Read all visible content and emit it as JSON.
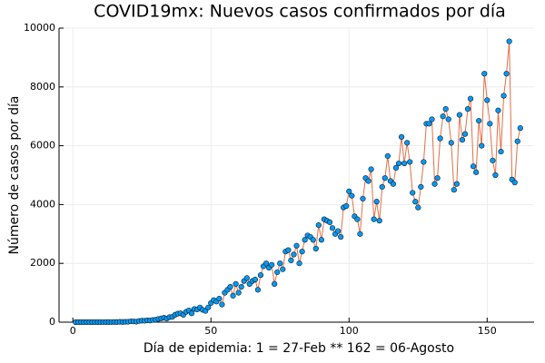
{
  "chart_data": {
    "type": "line",
    "title": "COVID19mx: Nuevos casos confirmados por día",
    "x_label": "Día de epidemia: 1 = 27-Feb ** 162 = 06-Agosto",
    "y_label": "Número de casos por día",
    "x": [
      1,
      2,
      3,
      4,
      5,
      6,
      7,
      8,
      9,
      10,
      11,
      12,
      13,
      14,
      15,
      16,
      17,
      18,
      19,
      20,
      21,
      22,
      23,
      24,
      25,
      26,
      27,
      28,
      29,
      30,
      31,
      32,
      33,
      34,
      35,
      36,
      37,
      38,
      39,
      40,
      41,
      42,
      43,
      44,
      45,
      46,
      47,
      48,
      49,
      50,
      51,
      52,
      53,
      54,
      55,
      56,
      57,
      58,
      59,
      60,
      61,
      62,
      63,
      64,
      65,
      66,
      67,
      68,
      69,
      70,
      71,
      72,
      73,
      74,
      75,
      76,
      77,
      78,
      79,
      80,
      81,
      82,
      83,
      84,
      85,
      86,
      87,
      88,
      89,
      90,
      91,
      92,
      93,
      94,
      95,
      96,
      97,
      98,
      99,
      100,
      101,
      102,
      103,
      104,
      105,
      106,
      107,
      108,
      109,
      110,
      111,
      112,
      113,
      114,
      115,
      116,
      117,
      118,
      119,
      120,
      121,
      122,
      123,
      124,
      125,
      126,
      127,
      128,
      129,
      130,
      131,
      132,
      133,
      134,
      135,
      136,
      137,
      138,
      139,
      140,
      141,
      142,
      143,
      144,
      145,
      146,
      147,
      148,
      149,
      150,
      151,
      152,
      153,
      154,
      155,
      156,
      157,
      158,
      159,
      160,
      161,
      162
    ],
    "series": [
      {
        "color": "#e26f46",
        "marker_color": "#009af9",
        "values": [
          0,
          0,
          0,
          1,
          0,
          1,
          0,
          1,
          0,
          1,
          2,
          1,
          3,
          2,
          5,
          4,
          12,
          7,
          12,
          14,
          29,
          25,
          16,
          40,
          51,
          48,
          62,
          55,
          75,
          80,
          110,
          130,
          150,
          120,
          170,
          180,
          250,
          290,
          300,
          250,
          350,
          400,
          300,
          450,
          430,
          500,
          420,
          380,
          500,
          650,
          750,
          700,
          800,
          600,
          1000,
          1100,
          1200,
          900,
          1300,
          1000,
          1200,
          1400,
          1500,
          1300,
          1400,
          1450,
          1100,
          1600,
          1900,
          2000,
          1850,
          1950,
          1300,
          1700,
          2000,
          1800,
          2400,
          2450,
          2100,
          2300,
          2600,
          2000,
          2400,
          2800,
          2950,
          2900,
          2800,
          2500,
          3300,
          2800,
          3500,
          3450,
          3400,
          3200,
          3000,
          3100,
          2900,
          3900,
          3950,
          4450,
          4300,
          3600,
          3500,
          3000,
          4200,
          4900,
          4800,
          5200,
          3500,
          4100,
          3450,
          4600,
          4900,
          5650,
          4800,
          4700,
          5250,
          5400,
          6300,
          5400,
          6100,
          5450,
          4400,
          4100,
          3900,
          4600,
          5450,
          6750,
          6750,
          6900,
          4700,
          4900,
          6250,
          7000,
          7250,
          6900,
          6100,
          4500,
          4700,
          7050,
          6200,
          6400,
          7250,
          7600,
          5300,
          5100,
          6850,
          6000,
          8450,
          7550,
          6750,
          5500,
          5000,
          7200,
          5800,
          7700,
          8450,
          9550,
          4850,
          4750,
          6150,
          6600
        ]
      }
    ],
    "xlim": [
      -5,
      167
    ],
    "ylim": [
      0,
      10000
    ],
    "xticks": [
      0,
      50,
      100,
      150
    ],
    "yticks": [
      0,
      2000,
      4000,
      6000,
      8000,
      10000
    ],
    "grid": true
  }
}
